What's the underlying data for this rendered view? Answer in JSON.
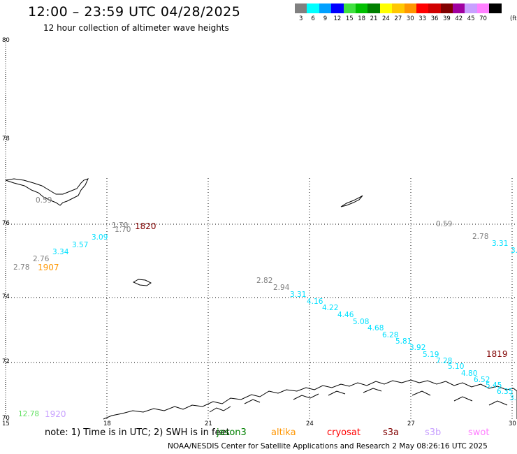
{
  "header": {
    "title": "12:00 – 23:59 UTC 04/28/2025",
    "subtitle": "12 hour collection of altimeter wave heights"
  },
  "colorbar": {
    "unit": "(ft)",
    "bins": [
      {
        "label": "3",
        "color": "#808080"
      },
      {
        "label": "6",
        "color": "#00ffff"
      },
      {
        "label": "9",
        "color": "#00a0ff"
      },
      {
        "label": "12",
        "color": "#0000ff"
      },
      {
        "label": "15",
        "color": "#40e040"
      },
      {
        "label": "18",
        "color": "#00c000"
      },
      {
        "label": "21",
        "color": "#008000"
      },
      {
        "label": "24",
        "color": "#ffff00"
      },
      {
        "label": "27",
        "color": "#ffc800"
      },
      {
        "label": "30",
        "color": "#ff9600"
      },
      {
        "label": "33",
        "color": "#ff0000"
      },
      {
        "label": "36",
        "color": "#d00000"
      },
      {
        "label": "39",
        "color": "#800000"
      },
      {
        "label": "42",
        "color": "#a000a0"
      },
      {
        "label": "45",
        "color": "#c8a0ff"
      },
      {
        "label": "70",
        "color": "#ff80ff"
      },
      {
        "label": "",
        "color": "#000000"
      }
    ]
  },
  "axes": {
    "lat_labels": [
      "80",
      "78",
      "76",
      "74",
      "72",
      "70"
    ],
    "lon_labels": [
      "15",
      "18",
      "21",
      "24",
      "27",
      "30"
    ]
  },
  "observations": [
    {
      "text": "0.59",
      "color": "#808080"
    },
    {
      "text": "1.70",
      "color": "#808080"
    },
    {
      "text": "1.70",
      "color": "#808080"
    },
    {
      "text": "3.09",
      "color": "#00e0ff"
    },
    {
      "text": "3.57",
      "color": "#00e0ff"
    },
    {
      "text": "3.34",
      "color": "#00e0ff"
    },
    {
      "text": "2.76",
      "color": "#808080"
    },
    {
      "text": "2.78",
      "color": "#808080"
    },
    {
      "text": "0.59",
      "color": "#808080"
    },
    {
      "text": "2.78",
      "color": "#808080"
    },
    {
      "text": "3.31",
      "color": "#00e0ff"
    },
    {
      "text": "3.",
      "color": "#00e0ff"
    },
    {
      "text": "2.82",
      "color": "#808080"
    },
    {
      "text": "2.94",
      "color": "#808080"
    },
    {
      "text": "3.31",
      "color": "#00e0ff"
    },
    {
      "text": "4.16",
      "color": "#00e0ff"
    },
    {
      "text": "4.22",
      "color": "#00e0ff"
    },
    {
      "text": "4.46",
      "color": "#00e0ff"
    },
    {
      "text": "5.08",
      "color": "#00e0ff"
    },
    {
      "text": "4.68",
      "color": "#00e0ff"
    },
    {
      "text": "6.28",
      "color": "#00e0ff"
    },
    {
      "text": "5.81",
      "color": "#00e0ff"
    },
    {
      "text": "3.92",
      "color": "#00e0ff"
    },
    {
      "text": "5.19",
      "color": "#00e0ff"
    },
    {
      "text": "7.28",
      "color": "#00e0ff"
    },
    {
      "text": "5.10",
      "color": "#00e0ff"
    },
    {
      "text": "4.80",
      "color": "#00e0ff"
    },
    {
      "text": "6.52",
      "color": "#00e0ff"
    },
    {
      "text": "5.45",
      "color": "#00e0ff"
    },
    {
      "text": "6.35",
      "color": "#00e0ff"
    },
    {
      "text": "3.",
      "color": "#00e0ff"
    },
    {
      "text": "12.78",
      "color": "#60e060"
    }
  ],
  "pass_tags": [
    {
      "text": "1820",
      "color": "#800000"
    },
    {
      "text": "1907",
      "color": "#ff9600"
    },
    {
      "text": "1819",
      "color": "#800000"
    },
    {
      "text": "1920",
      "color": "#c8a0ff"
    }
  ],
  "footer_note": {
    "note": "note: 1) Time is in UTC; 2) SWH is in feet",
    "satellites": [
      {
        "name": "jason3",
        "color": "#008000"
      },
      {
        "name": "altika",
        "color": "#ff9600"
      },
      {
        "name": "cryosat",
        "color": "#ff0000"
      },
      {
        "name": "s3a",
        "color": "#800000"
      },
      {
        "name": "s3b",
        "color": "#c8a0ff"
      },
      {
        "name": "swot",
        "color": "#ff80ff"
      }
    ]
  },
  "credit": "NOAA/NESDIS Center for Satellite Applications and Research    2 May 08:26:16 UTC 2025"
}
